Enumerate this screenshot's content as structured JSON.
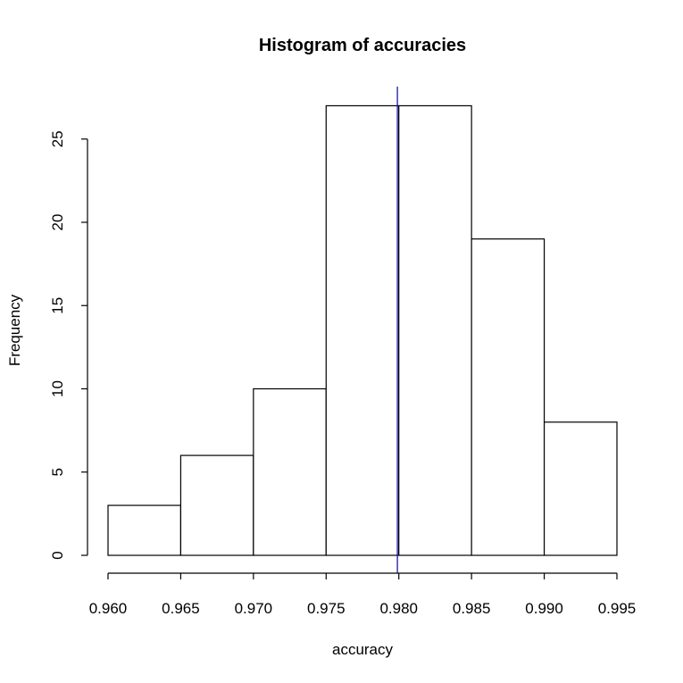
{
  "chart_data": {
    "type": "bar",
    "title": "Histogram of accuracies",
    "xlabel": "accuracy",
    "ylabel": "Frequency",
    "bins": [
      {
        "start": 0.96,
        "end": 0.965,
        "count": 3
      },
      {
        "start": 0.965,
        "end": 0.97,
        "count": 6
      },
      {
        "start": 0.97,
        "end": 0.975,
        "count": 10
      },
      {
        "start": 0.975,
        "end": 0.98,
        "count": 27
      },
      {
        "start": 0.98,
        "end": 0.985,
        "count": 27
      },
      {
        "start": 0.985,
        "end": 0.99,
        "count": 19
      },
      {
        "start": 0.99,
        "end": 0.995,
        "count": 8
      }
    ],
    "x_ticks": [
      "0.960",
      "0.965",
      "0.970",
      "0.975",
      "0.980",
      "0.985",
      "0.990",
      "0.995"
    ],
    "y_ticks": [
      "0",
      "5",
      "10",
      "15",
      "20",
      "25"
    ],
    "xlim": [
      0.96,
      0.995
    ],
    "ylim": [
      0,
      25
    ],
    "grid": false,
    "legend": false,
    "reference_line": {
      "x": 0.9799,
      "color": "#0000cc"
    },
    "bar_fill": "#ffffff",
    "bar_stroke": "#000000"
  }
}
